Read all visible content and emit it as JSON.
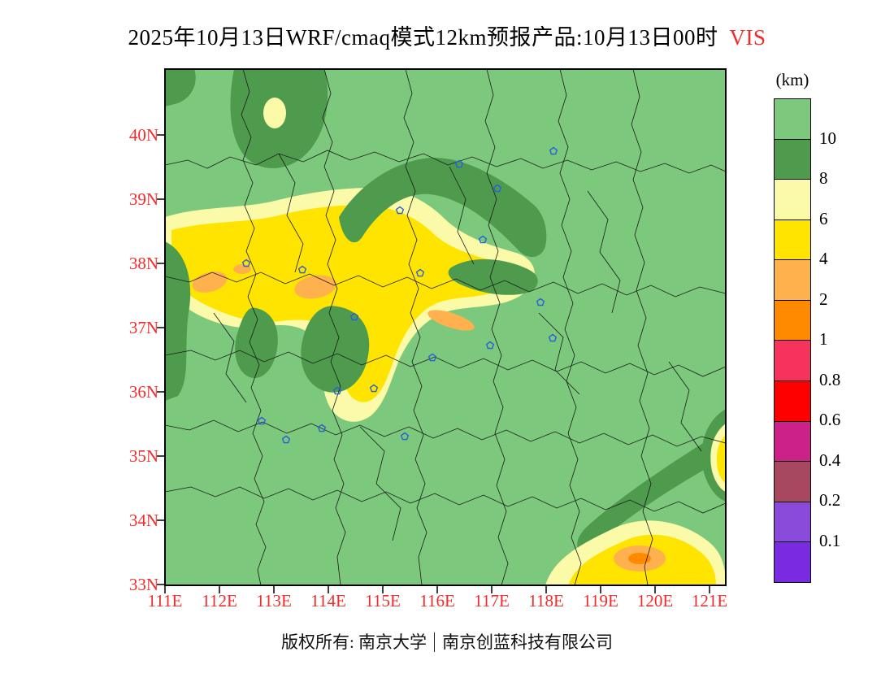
{
  "title": {
    "main": "2025年10月13日WRF/cmaq模式12km预报产品:10月13日00时",
    "variable": "VIS"
  },
  "legend": {
    "unit_label": "(km)",
    "boxes": [
      "green",
      "darkgreen",
      "paleyellow",
      "yellow",
      "lightorange",
      "orange",
      "pink",
      "red",
      "magenta",
      "maroon",
      "purple",
      "violet"
    ],
    "labels": [
      "10",
      "8",
      "6",
      "4",
      "2",
      "1",
      "0.8",
      "0.6",
      "0.4",
      "0.2",
      "0.1"
    ]
  },
  "palette": {
    "green": "#7CC87C",
    "darkgreen": "#4E9B4E",
    "paleyellow": "#FAFAA8",
    "yellow": "#FFE400",
    "lightorange": "#FFB14E",
    "orange": "#FF8A00",
    "pink": "#F5335C",
    "red": "#FF0000",
    "magenta": "#CC2288",
    "maroon": "#A84860",
    "purple": "#8A4BDB",
    "violet": "#7A2BE2",
    "boundary": "#1A1A1A",
    "marker_color": "#2B5FD9",
    "axis_label_color": "#F42B2B"
  },
  "axes": {
    "lat_labels": [
      "40N",
      "39N",
      "38N",
      "37N",
      "36N",
      "35N",
      "34N",
      "33N"
    ],
    "lon_labels": [
      "111E",
      "112E",
      "113E",
      "114E",
      "115E",
      "116E",
      "117E",
      "118E",
      "119E",
      "120E",
      "121E"
    ]
  },
  "map": {
    "city_markers": [
      [
        362,
        117
      ],
      [
        478,
        101
      ],
      [
        409,
        147
      ],
      [
        289,
        174
      ],
      [
        391,
        210
      ],
      [
        314,
        251
      ],
      [
        169,
        247
      ],
      [
        100,
        239
      ],
      [
        233,
        305
      ],
      [
        462,
        287
      ],
      [
        400,
        340
      ],
      [
        477,
        331
      ],
      [
        329,
        355
      ],
      [
        212,
        396
      ],
      [
        257,
        393
      ],
      [
        119,
        433
      ],
      [
        149,
        456
      ],
      [
        193,
        442
      ],
      [
        295,
        452
      ]
    ]
  },
  "footer": {
    "copyright_left": "版权所有: 南京大学",
    "copyright_right": "南京创蓝科技有限公司"
  }
}
